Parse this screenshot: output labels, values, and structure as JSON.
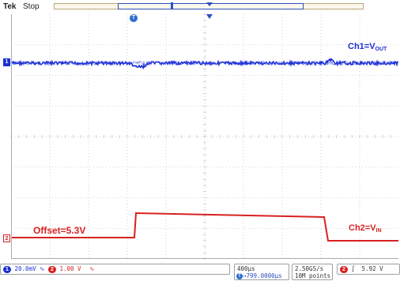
{
  "header": {
    "brand": "Tek",
    "status": "Stop"
  },
  "markers": {
    "ch1": "1",
    "ch2": "2",
    "trigger_position": "T"
  },
  "labels": {
    "ch1": {
      "prefix": "Ch1=V",
      "sub": "OUT"
    },
    "ch2": {
      "prefix": "Ch2=V",
      "sub": "IN"
    },
    "offset": "Offset=5.3V"
  },
  "colors": {
    "ch1": "#1b2fd6",
    "ch2": "#d82121",
    "grid": "#c8c8c8",
    "accent": "#2d4fbf"
  },
  "readout": {
    "ch1_badge": "1",
    "ch1_scale": "20.0mV",
    "ch1_bw_symbol": "∿",
    "ch2_badge": "2",
    "ch2_scale": "1.00 V",
    "ch2_bw_symbol": "∿",
    "timebase": "400µs",
    "delay_badge": "T",
    "delay": "→799.0000µs",
    "sample_rate": "2.50GS/s",
    "record_length": "10M points",
    "trig_badge": "2",
    "trig_slope": "∫",
    "trig_level": "5.92 V"
  }
}
